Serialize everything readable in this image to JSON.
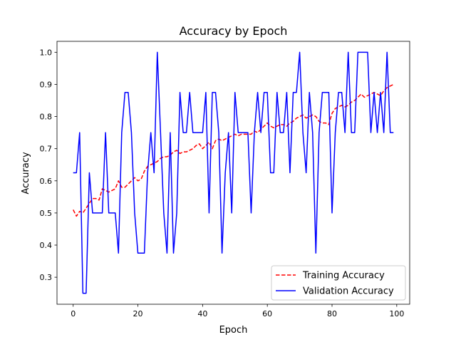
{
  "chart_data": {
    "type": "line",
    "title": "Accuracy by Epoch",
    "xlabel": "Epoch",
    "ylabel": "Accuracy",
    "xlim": [
      -5,
      104
    ],
    "ylim": [
      0.216,
      1.034
    ],
    "xticks": [
      0,
      20,
      40,
      60,
      80,
      100
    ],
    "yticks": [
      0.3,
      0.4,
      0.5,
      0.6,
      0.7,
      0.8,
      0.9,
      1.0
    ],
    "xtick_labels": [
      "0",
      "20",
      "40",
      "60",
      "80",
      "100"
    ],
    "ytick_labels": [
      "0.3",
      "0.4",
      "0.5",
      "0.6",
      "0.7",
      "0.8",
      "0.9",
      "1.0"
    ],
    "grid": false,
    "legend_position": "lower right",
    "series": [
      {
        "name": "Training Accuracy",
        "color": "#ff0000",
        "style": "dashed",
        "x": [
          0,
          1,
          2,
          3,
          4,
          5,
          6,
          7,
          8,
          9,
          10,
          11,
          12,
          13,
          14,
          15,
          16,
          17,
          18,
          19,
          20,
          21,
          22,
          23,
          24,
          25,
          26,
          27,
          28,
          29,
          30,
          31,
          32,
          33,
          34,
          35,
          36,
          37,
          38,
          39,
          40,
          41,
          42,
          43,
          44,
          45,
          46,
          47,
          48,
          49,
          50,
          51,
          52,
          53,
          54,
          55,
          56,
          57,
          58,
          59,
          60,
          61,
          62,
          63,
          64,
          65,
          66,
          67,
          68,
          69,
          70,
          71,
          72,
          73,
          74,
          75,
          76,
          77,
          78,
          79,
          80,
          81,
          82,
          83,
          84,
          85,
          86,
          87,
          88,
          89,
          90,
          91,
          92,
          93,
          94,
          95,
          96,
          97,
          98,
          99
        ],
        "values": [
          0.51,
          0.49,
          0.505,
          0.5,
          0.515,
          0.53,
          0.545,
          0.545,
          0.54,
          0.575,
          0.57,
          0.565,
          0.57,
          0.575,
          0.6,
          0.58,
          0.58,
          0.59,
          0.6,
          0.61,
          0.6,
          0.605,
          0.63,
          0.645,
          0.65,
          0.655,
          0.66,
          0.67,
          0.675,
          0.675,
          0.68,
          0.69,
          0.695,
          0.685,
          0.69,
          0.69,
          0.695,
          0.7,
          0.71,
          0.715,
          0.7,
          0.71,
          0.72,
          0.7,
          0.725,
          0.73,
          0.725,
          0.73,
          0.735,
          0.74,
          0.745,
          0.74,
          0.745,
          0.745,
          0.745,
          0.745,
          0.755,
          0.75,
          0.76,
          0.77,
          0.78,
          0.77,
          0.765,
          0.77,
          0.775,
          0.775,
          0.77,
          0.78,
          0.785,
          0.795,
          0.8,
          0.805,
          0.795,
          0.8,
          0.805,
          0.8,
          0.785,
          0.78,
          0.78,
          0.775,
          0.81,
          0.825,
          0.83,
          0.835,
          0.83,
          0.835,
          0.845,
          0.85,
          0.86,
          0.87,
          0.86,
          0.865,
          0.87,
          0.875,
          0.87,
          0.865,
          0.88,
          0.89,
          0.895,
          0.9
        ]
      },
      {
        "name": "Validation Accuracy",
        "color": "#0000ff",
        "style": "solid",
        "x": [
          0,
          1,
          2,
          3,
          4,
          5,
          6,
          7,
          8,
          9,
          10,
          11,
          12,
          13,
          14,
          15,
          16,
          17,
          18,
          19,
          20,
          21,
          22,
          23,
          24,
          25,
          26,
          27,
          28,
          29,
          30,
          31,
          32,
          33,
          34,
          35,
          36,
          37,
          38,
          39,
          40,
          41,
          42,
          43,
          44,
          45,
          46,
          47,
          48,
          49,
          50,
          51,
          52,
          53,
          54,
          55,
          56,
          57,
          58,
          59,
          60,
          61,
          62,
          63,
          64,
          65,
          66,
          67,
          68,
          69,
          70,
          71,
          72,
          73,
          74,
          75,
          76,
          77,
          78,
          79,
          80,
          81,
          82,
          83,
          84,
          85,
          86,
          87,
          88,
          89,
          90,
          91,
          92,
          93,
          94,
          95,
          96,
          97,
          98,
          99
        ],
        "values": [
          0.625,
          0.625,
          0.75,
          0.25,
          0.25,
          0.625,
          0.5,
          0.5,
          0.5,
          0.5,
          0.75,
          0.5,
          0.5,
          0.5,
          0.375,
          0.75,
          0.875,
          0.875,
          0.75,
          0.5,
          0.375,
          0.375,
          0.375,
          0.625,
          0.75,
          0.625,
          1.0,
          0.75,
          0.5,
          0.375,
          0.75,
          0.375,
          0.5,
          0.875,
          0.75,
          0.75,
          0.875,
          0.75,
          0.75,
          0.75,
          0.75,
          0.875,
          0.5,
          0.875,
          0.875,
          0.75,
          0.375,
          0.625,
          0.75,
          0.5,
          0.875,
          0.75,
          0.75,
          0.75,
          0.75,
          0.5,
          0.75,
          0.875,
          0.75,
          0.875,
          0.875,
          0.625,
          0.625,
          0.875,
          0.75,
          0.75,
          0.875,
          0.625,
          0.875,
          0.875,
          1.0,
          0.75,
          0.625,
          0.875,
          0.75,
          0.375,
          0.75,
          0.875,
          0.875,
          0.875,
          0.5,
          0.75,
          0.875,
          0.875,
          0.75,
          1.0,
          0.75,
          0.75,
          1.0,
          1.0,
          1.0,
          1.0,
          0.75,
          0.875,
          0.75,
          0.875,
          0.75,
          1.0,
          0.75,
          0.75
        ]
      }
    ]
  }
}
